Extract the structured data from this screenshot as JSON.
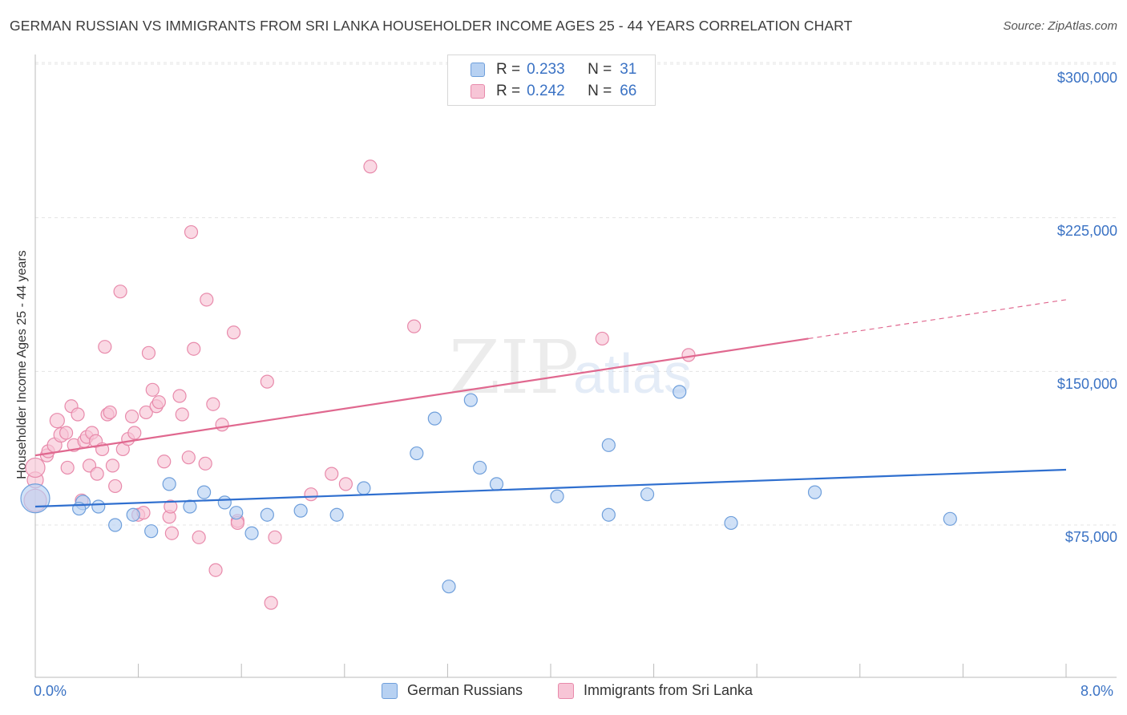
{
  "title": "GERMAN RUSSIAN VS IMMIGRANTS FROM SRI LANKA HOUSEHOLDER INCOME AGES 25 - 44 YEARS CORRELATION CHART",
  "source": "Source: ZipAtlas.com",
  "watermark": {
    "zip": "ZIP",
    "atlas": "atlas"
  },
  "legend_top": [
    {
      "r_label": "R =",
      "r_value": "0.233",
      "n_label": "N =",
      "n_value": "31"
    },
    {
      "r_label": "R =",
      "r_value": "0.242",
      "n_label": "N =",
      "n_value": "66"
    }
  ],
  "legend_bottom": [
    "German Russians",
    "Immigrants from Sri Lanka"
  ],
  "x_tick_labels": {
    "left": "0.0%",
    "right": "8.0%"
  },
  "y_tick_labels": [
    "$300,000",
    "$225,000",
    "$150,000",
    "$75,000"
  ],
  "colors": {
    "blue_fill": "#b7d1f2",
    "blue_stroke": "#6f9fdb",
    "blue_line": "#2f6fcf",
    "pink_fill": "#f7c5d6",
    "pink_stroke": "#e88aab",
    "pink_line": "#e0688f",
    "accent_text": "#3a72c4"
  },
  "chart_data": {
    "type": "scatter",
    "title": "GERMAN RUSSIAN VS IMMIGRANTS FROM SRI LANKA HOUSEHOLDER INCOME AGES 25 - 44 YEARS CORRELATION CHART",
    "xlabel": "",
    "ylabel": "Householder Income Ages 25 - 44 years",
    "xlim": [
      0,
      8
    ],
    "ylim": [
      0,
      310000
    ],
    "y_ticks": [
      75000,
      150000,
      225000,
      300000
    ],
    "series": [
      {
        "name": "German Russians",
        "r": 0.233,
        "n": 31,
        "trend": {
          "x0": 0,
          "y0": 84000,
          "x1": 8,
          "y1": 102000,
          "dashed_from": null
        },
        "points": [
          [
            0.0,
            88000,
            18
          ],
          [
            0.37,
            86000,
            9
          ],
          [
            0.34,
            83000,
            8
          ],
          [
            0.49,
            84000,
            8
          ],
          [
            0.62,
            75000,
            8
          ],
          [
            0.76,
            80000,
            8
          ],
          [
            0.9,
            72000,
            8
          ],
          [
            1.04,
            95000,
            8
          ],
          [
            1.2,
            84000,
            8
          ],
          [
            1.31,
            91000,
            8
          ],
          [
            1.47,
            86000,
            8
          ],
          [
            1.56,
            81000,
            8
          ],
          [
            1.68,
            71000,
            8
          ],
          [
            1.8,
            80000,
            8
          ],
          [
            2.06,
            82000,
            8
          ],
          [
            2.34,
            80000,
            8
          ],
          [
            2.55,
            93000,
            8
          ],
          [
            2.96,
            110000,
            8
          ],
          [
            3.1,
            127000,
            8
          ],
          [
            3.21,
            45000,
            8
          ],
          [
            3.38,
            136000,
            8
          ],
          [
            3.45,
            103000,
            8
          ],
          [
            3.58,
            95000,
            8
          ],
          [
            4.05,
            89000,
            8
          ],
          [
            4.45,
            114000,
            8
          ],
          [
            4.45,
            80000,
            8
          ],
          [
            4.75,
            90000,
            8
          ],
          [
            5.0,
            140000,
            8
          ],
          [
            5.4,
            76000,
            8
          ],
          [
            6.05,
            91000,
            8
          ],
          [
            7.1,
            78000,
            8
          ]
        ]
      },
      {
        "name": "Immigrants from Sri Lanka",
        "r": 0.242,
        "n": 66,
        "trend": {
          "x0": 0,
          "y0": 109000,
          "x1": 8,
          "y1": 185000,
          "dashed_from": 6.0
        },
        "points": [
          [
            0.0,
            87000,
            14
          ],
          [
            0.0,
            97000,
            10
          ],
          [
            0.0,
            103000,
            12
          ],
          [
            0.09,
            109000,
            8
          ],
          [
            0.1,
            111000,
            8
          ],
          [
            0.15,
            114000,
            9
          ],
          [
            0.17,
            126000,
            9
          ],
          [
            0.2,
            119000,
            9
          ],
          [
            0.24,
            120000,
            8
          ],
          [
            0.25,
            103000,
            8
          ],
          [
            0.28,
            133000,
            8
          ],
          [
            0.3,
            114000,
            8
          ],
          [
            0.33,
            129000,
            8
          ],
          [
            0.36,
            87000,
            8
          ],
          [
            0.38,
            116000,
            8
          ],
          [
            0.4,
            118000,
            8
          ],
          [
            0.42,
            104000,
            8
          ],
          [
            0.44,
            120000,
            8
          ],
          [
            0.47,
            116000,
            8
          ],
          [
            0.48,
            100000,
            8
          ],
          [
            0.52,
            112000,
            8
          ],
          [
            0.54,
            162000,
            8
          ],
          [
            0.56,
            129000,
            8
          ],
          [
            0.58,
            130000,
            8
          ],
          [
            0.6,
            104000,
            8
          ],
          [
            0.62,
            94000,
            8
          ],
          [
            0.66,
            189000,
            8
          ],
          [
            0.68,
            112000,
            8
          ],
          [
            0.72,
            117000,
            8
          ],
          [
            0.75,
            128000,
            8
          ],
          [
            0.77,
            120000,
            8
          ],
          [
            0.8,
            80000,
            8
          ],
          [
            0.84,
            81000,
            8
          ],
          [
            0.86,
            130000,
            8
          ],
          [
            0.88,
            159000,
            8
          ],
          [
            0.91,
            141000,
            8
          ],
          [
            0.94,
            133000,
            8
          ],
          [
            0.96,
            135000,
            8
          ],
          [
            1.0,
            106000,
            8
          ],
          [
            1.04,
            79000,
            8
          ],
          [
            1.05,
            84000,
            8
          ],
          [
            1.06,
            71000,
            8
          ],
          [
            1.12,
            138000,
            8
          ],
          [
            1.14,
            129000,
            8
          ],
          [
            1.19,
            108000,
            8
          ],
          [
            1.21,
            218000,
            8
          ],
          [
            1.23,
            161000,
            8
          ],
          [
            1.27,
            69000,
            8
          ],
          [
            1.32,
            105000,
            8
          ],
          [
            1.33,
            185000,
            8
          ],
          [
            1.38,
            134000,
            8
          ],
          [
            1.4,
            53000,
            8
          ],
          [
            1.45,
            124000,
            8
          ],
          [
            1.54,
            169000,
            8
          ],
          [
            1.57,
            77000,
            8
          ],
          [
            1.57,
            76000,
            8
          ],
          [
            1.8,
            145000,
            8
          ],
          [
            1.83,
            37000,
            8
          ],
          [
            1.86,
            69000,
            8
          ],
          [
            2.14,
            90000,
            8
          ],
          [
            2.3,
            100000,
            8
          ],
          [
            2.41,
            95000,
            8
          ],
          [
            2.6,
            250000,
            8
          ],
          [
            2.94,
            172000,
            8
          ],
          [
            4.4,
            166000,
            8
          ],
          [
            5.07,
            158000,
            8
          ]
        ]
      }
    ]
  }
}
